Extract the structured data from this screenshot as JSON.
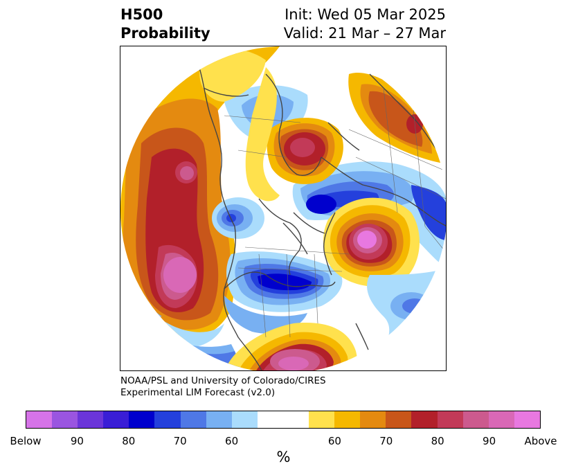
{
  "header": {
    "variable": "H500",
    "product": "Probability",
    "init": "Init: Wed 05 Mar 2025",
    "valid": "Valid: 21 Mar – 27 Mar"
  },
  "credit": {
    "line1": "NOAA/PSL and University of Colorado/CIRES",
    "line2": "Experimental LIM Forecast (v2.0)"
  },
  "colorbar": {
    "colors": [
      "#d673e8",
      "#9a55e0",
      "#6b35d9",
      "#3a1ed6",
      "#0000cd",
      "#2440dc",
      "#4f78e6",
      "#78b0f2",
      "#aadcfc",
      "#ffffff",
      "#ffffff",
      "#ffe14d",
      "#f5b800",
      "#e48a10",
      "#c8561a",
      "#b2202a",
      "#c23a58",
      "#cc5a8e",
      "#d968b6",
      "#e878e0"
    ],
    "tick_labels": [
      "Below",
      "90",
      "80",
      "70",
      "60",
      "60",
      "70",
      "80",
      "90",
      "Above"
    ],
    "unit": "%"
  },
  "map": {
    "projection": "north-polar-stereographic",
    "colors": {
      "pink": "#e878e0",
      "rose": "#cc5a8e",
      "crimson": "#c23a58",
      "red": "#b2202a",
      "rust": "#c8561a",
      "orange": "#e48a10",
      "amber": "#f5b800",
      "yellow": "#ffe14d",
      "pale_blue": "#aadcfc",
      "sky_blue": "#78b0f2",
      "mid_blue": "#4f78e6",
      "blue": "#2440dc",
      "deep_blue": "#0000cd",
      "coast": "#444444"
    }
  }
}
